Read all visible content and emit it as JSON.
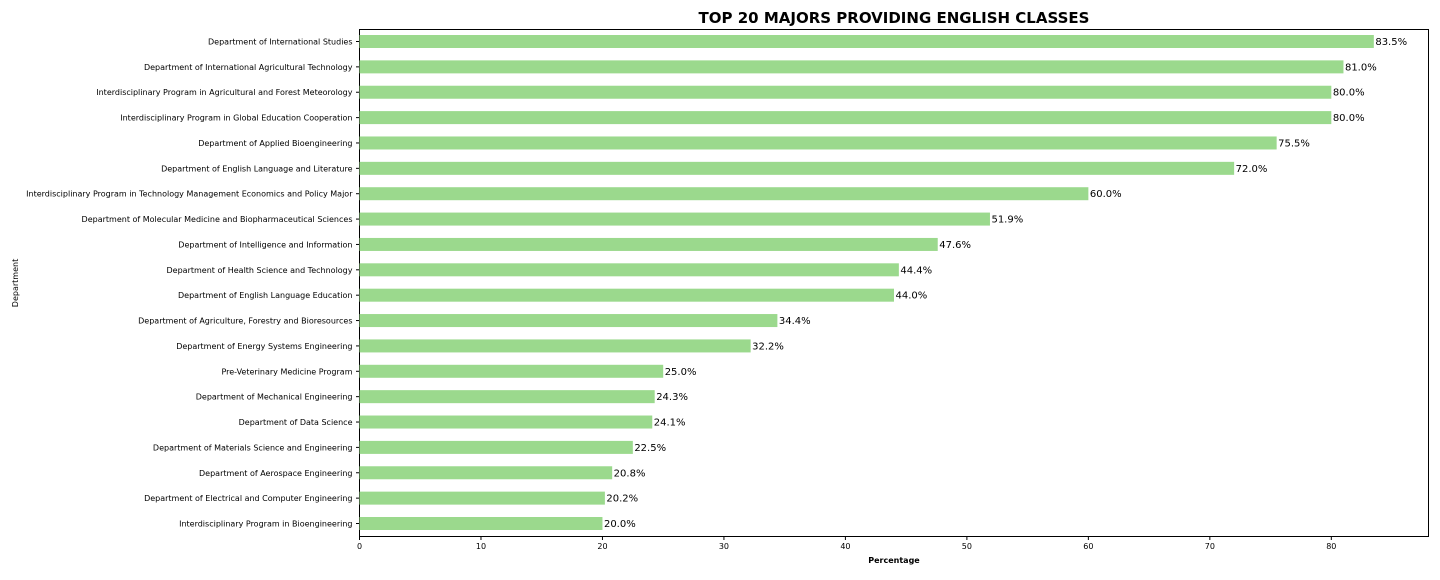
{
  "chart_data": {
    "type": "bar",
    "orientation": "horizontal",
    "title": "TOP 20 MAJORS PROVIDING ENGLISH CLASSES",
    "xlabel": "Percentage",
    "ylabel": "Department",
    "xlim": [
      0,
      88
    ],
    "xticks": [
      0,
      10,
      20,
      30,
      40,
      50,
      60,
      70,
      80
    ],
    "bar_color": "#9bd98d",
    "grid": false,
    "categories": [
      "Department of International Studies",
      "Department of International Agricultural Technology",
      "Interdisciplinary Program in Agricultural and Forest Meteorology",
      "Interdisciplinary Program in Global Education Cooperation",
      "Department of Applied Bioengineering",
      "Department of English Language and Literature",
      "Interdisciplinary Program in Technology Management Economics and Policy Major",
      "Department of Molecular Medicine and Biopharmaceutical Sciences",
      "Department of Intelligence and Information",
      "Department of Health Science and Technology",
      "Department of English Language Education",
      "Department of Agriculture, Forestry and Bioresources",
      "Department of Energy Systems Engineering",
      "Pre-Veterinary Medicine Program",
      "Department of Mechanical Engineering",
      "Department of Data Science",
      "Department of Materials Science and Engineering",
      "Department of Aerospace Engineering",
      "Department of Electrical and Computer Engineering",
      "Interdisciplinary Program in Bioengineering"
    ],
    "values": [
      83.5,
      81.0,
      80.0,
      80.0,
      75.5,
      72.0,
      60.0,
      51.9,
      47.6,
      44.4,
      44.0,
      34.4,
      32.2,
      25.0,
      24.3,
      24.1,
      22.5,
      20.8,
      20.2,
      20.0
    ],
    "data_labels": [
      "83.5%",
      "81.0%",
      "80.0%",
      "80.0%",
      "75.5%",
      "72.0%",
      "60.0%",
      "51.9%",
      "47.6%",
      "44.4%",
      "44.0%",
      "34.4%",
      "32.2%",
      "25.0%",
      "24.3%",
      "24.1%",
      "22.5%",
      "20.8%",
      "20.2%",
      "20.0%"
    ]
  }
}
